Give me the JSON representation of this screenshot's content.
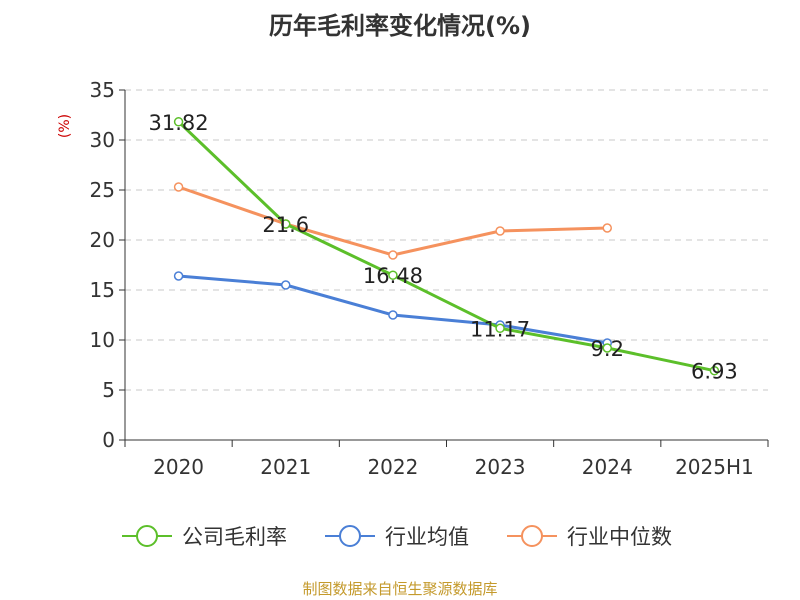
{
  "chart_data": {
    "type": "line",
    "title": "历年毛利率变化情况(%)",
    "ylabel": "(%)",
    "ylim": [
      0,
      35
    ],
    "yticks": [
      0,
      5,
      10,
      15,
      20,
      25,
      30,
      35
    ],
    "grid": true,
    "legend_position": "bottom",
    "categories": [
      "2020",
      "2021",
      "2022",
      "2023",
      "2024",
      "2025H1"
    ],
    "series": [
      {
        "name": "公司毛利率",
        "color": "#5cbf2a",
        "values": [
          31.82,
          21.6,
          16.48,
          11.17,
          9.2,
          6.93
        ],
        "labels": [
          "31.82",
          "21.6",
          "16.48",
          "11.17",
          "9.2",
          "6.93"
        ]
      },
      {
        "name": "行业均值",
        "color": "#4a7fd6",
        "values": [
          16.4,
          15.5,
          12.5,
          11.5,
          9.7,
          null
        ]
      },
      {
        "name": "行业中位数",
        "color": "#f5925e",
        "values": [
          25.3,
          21.6,
          18.5,
          20.9,
          21.2,
          null
        ]
      }
    ]
  },
  "footer": {
    "source": "制图数据来自恒生聚源数据库"
  }
}
